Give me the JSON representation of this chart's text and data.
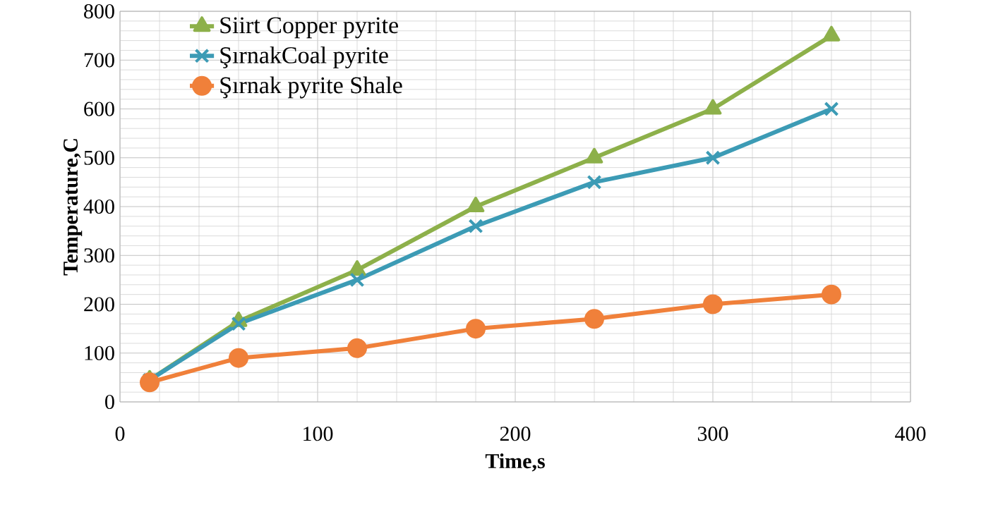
{
  "chart_data": {
    "type": "line",
    "xlabel": "Time,s",
    "ylabel": "Temperature,C",
    "x": [
      15,
      60,
      120,
      180,
      240,
      300,
      360
    ],
    "series": [
      {
        "name": "Siirt Copper pyrite",
        "color": "#8db04a",
        "marker": "triangle",
        "values": [
          45,
          165,
          270,
          400,
          500,
          600,
          750
        ]
      },
      {
        "name": "ŞırnakCoal pyrite",
        "color": "#3c9bb5",
        "marker": "cross",
        "values": [
          45,
          160,
          250,
          360,
          450,
          500,
          600
        ]
      },
      {
        "name": "Şırnak pyrite Shale",
        "color": "#f0803a",
        "marker": "circle",
        "values": [
          40,
          90,
          110,
          150,
          170,
          200,
          220
        ]
      }
    ],
    "xlim": [
      0,
      400
    ],
    "xticks": [
      0,
      100,
      200,
      300,
      400
    ],
    "ylim": [
      0,
      800
    ],
    "yticks": [
      0,
      100,
      200,
      300,
      400,
      500,
      600,
      700,
      800
    ],
    "grid": true,
    "legend": "top left"
  }
}
